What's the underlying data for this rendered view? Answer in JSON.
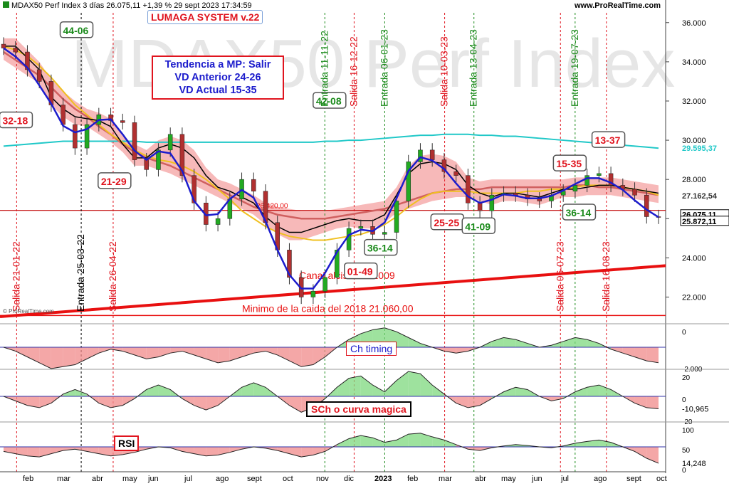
{
  "header": {
    "title": "MDAX50 Perf Index 3 días 26.075,11 +1,39 % 29 sept 2023 17:34:59",
    "site": "www.ProRealTime.com",
    "watermark": "MDAX50 Perf Index",
    "copyright": "© ProRealTime.com"
  },
  "system_box": "LUMAGA SYSTEM v.22",
  "trend_box": {
    "line1": "Tendencia a MP: Salir",
    "line2": "VD Anterior 24-26",
    "line3": "VD Actual 15-35"
  },
  "colors": {
    "red": "#e0141e",
    "green": "#1a8a1a",
    "blue": "#1c1ccc",
    "cyan": "#20c8c8",
    "yellow": "#f0c020",
    "cloud_red": "#f08080",
    "cloud_blue": "#9ee8f5"
  },
  "chart_data": {
    "type": "line",
    "main": {
      "ylim": [
        21000,
        36500
      ],
      "yticks": [
        "22.000",
        "24.000",
        "26.000",
        "28.000",
        "30.000",
        "32.000",
        "34.000",
        "36.000"
      ],
      "price_labels": [
        {
          "text": "29.595,37",
          "value": 29595,
          "color": "#20c8c8"
        },
        {
          "text": "27.162,54",
          "value": 27162,
          "color": "#333333"
        },
        {
          "text": "26.075,11",
          "value": 26200,
          "color": "#000000"
        },
        {
          "text": "25.872,11",
          "value": 25872,
          "color": "#000000"
        }
      ],
      "hline_label": "26.420,00",
      "hline_value": 26420,
      "min_line_value": 21060,
      "min_label": "Minimo de la caida del 2018  21.060,00",
      "channel_label": "Canal alcista de 2009",
      "trendline": {
        "x": [
          0,
          100
        ],
        "y": [
          21000,
          23600
        ]
      },
      "close": [
        34700,
        34500,
        33600,
        33000,
        31800,
        30800,
        29600,
        30800,
        31300,
        31000,
        30900,
        29000,
        28500,
        29500,
        30300,
        28200,
        26800,
        25700,
        26000,
        27000,
        28000,
        27400,
        25800,
        24400,
        23000,
        22000,
        22300,
        23000,
        24400,
        25500,
        25600,
        25200,
        25300,
        26900,
        28900,
        29500,
        29000,
        28400,
        28200,
        26800,
        26400,
        27200,
        27300,
        27200,
        27000,
        26900,
        27200,
        27400,
        27700,
        28200,
        28300,
        27700,
        27500,
        27200,
        26100,
        26075
      ],
      "kijun": [
        34800,
        34800,
        34200,
        33600,
        32200,
        31600,
        31200,
        31100,
        31000,
        30700,
        29800,
        29100,
        29100,
        29600,
        29800,
        29600,
        29100,
        28200,
        27600,
        27400,
        27100,
        26800,
        26100,
        25600,
        25300,
        25300,
        25500,
        25700,
        25900,
        26000,
        25900,
        25900,
        26200,
        27200,
        28300,
        28800,
        28900,
        28800,
        28500,
        27700,
        27300,
        27100,
        27300,
        27300,
        27200,
        27100,
        27300,
        27500,
        27500,
        27600,
        27700,
        27700,
        27600,
        27500,
        27400,
        27300
      ],
      "ma_slow": [
        34500,
        34100,
        33700,
        33300,
        32700,
        32100,
        31600,
        31200,
        30700,
        30300,
        29800,
        29400,
        29100,
        28900,
        28700,
        28400,
        28100,
        27800,
        27500,
        27200,
        26900,
        26600,
        26400,
        26200,
        26100,
        26000,
        26000,
        26000,
        26100,
        26200,
        26300,
        26400,
        26500,
        26700,
        26900,
        27100,
        27300,
        27400,
        27500,
        27500,
        27500,
        27600,
        27600,
        27600,
        27600,
        27600,
        27600,
        27600,
        27700,
        27700,
        27600,
        27600,
        27500,
        27400,
        27300,
        27200
      ],
      "ma_yellow": [
        34800,
        34600,
        34300,
        33800,
        33200,
        32500,
        31800,
        31300,
        30800,
        30300,
        29900,
        29500,
        29200,
        29000,
        28900,
        28700,
        28400,
        28000,
        27500,
        27000,
        26400,
        26000,
        25600,
        25300,
        25100,
        25000,
        24900,
        24900,
        25000,
        25100,
        25200,
        25400,
        25700,
        26100,
        26600,
        27000,
        27300,
        27400,
        27400,
        27400,
        27300,
        27300,
        27300,
        27300,
        27400,
        27400,
        27500,
        27500,
        27600,
        27700,
        27700,
        27700,
        27600,
        27500,
        27400,
        27200
      ],
      "ma_cyan": [
        29700,
        29750,
        29800,
        29850,
        29900,
        29950,
        29950,
        29950,
        29950,
        29950,
        29950,
        29950,
        29900,
        29900,
        29900,
        29900,
        29900,
        29900,
        29900,
        29900,
        29900,
        29900,
        29900,
        29900,
        29900,
        29900,
        29900,
        29950,
        29950,
        30000,
        30000,
        30050,
        30100,
        30150,
        30200,
        30250,
        30250,
        30300,
        30300,
        30300,
        30250,
        30250,
        30200,
        30200,
        30150,
        30100,
        30050,
        30000,
        29950,
        29900,
        29850,
        29800,
        29750,
        29700,
        29650,
        29595
      ]
    },
    "annotations": [
      {
        "text": "44-06",
        "color": "green",
        "x": 11.5,
        "y": 35600
      },
      {
        "text": "32-18",
        "color": "red",
        "x": 2.4,
        "y": 31000
      },
      {
        "text": "21-29",
        "color": "red",
        "x": 17.2,
        "y": 27900
      },
      {
        "text": "42-08",
        "color": "green",
        "x": 49.5,
        "y": 32000
      },
      {
        "text": "01-49",
        "color": "red",
        "x": 54.2,
        "y": 23300
      },
      {
        "text": "36-14",
        "color": "green",
        "x": 57.2,
        "y": 24500
      },
      {
        "text": "25-25",
        "color": "red",
        "x": 67.2,
        "y": 25800
      },
      {
        "text": "41-09",
        "color": "green",
        "x": 71.9,
        "y": 25600
      },
      {
        "text": "15-35",
        "color": "red",
        "x": 85.6,
        "y": 28800
      },
      {
        "text": "13-37",
        "color": "red",
        "x": 91.4,
        "y": 30000
      },
      {
        "text": "36-14",
        "color": "green",
        "x": 87.0,
        "y": 26300
      }
    ],
    "signals": [
      {
        "text": "Salida 21-01-22",
        "x": 2.5,
        "color": "red"
      },
      {
        "text": "Entrada 25-03-22",
        "x": 12.2,
        "color": "black"
      },
      {
        "text": "Salida 26-04-22",
        "x": 17.0,
        "color": "red"
      },
      {
        "text": "Entrada 11-11-22",
        "x": 48.8,
        "color": "green"
      },
      {
        "text": "Salida 16-12-22",
        "x": 53.2,
        "color": "red"
      },
      {
        "text": "Entrada 06-01-23",
        "x": 57.8,
        "color": "green"
      },
      {
        "text": "Salida 10-03-23",
        "x": 66.8,
        "color": "red"
      },
      {
        "text": "Entrada 13-04-23",
        "x": 71.2,
        "color": "green"
      },
      {
        "text": "Salida 06-07-23",
        "x": 84.2,
        "color": "red"
      },
      {
        "text": "Entrada 19-07-23",
        "x": 86.4,
        "color": "green"
      },
      {
        "text": "Salida 16-08-23",
        "x": 91.1,
        "color": "red"
      }
    ],
    "xticks": [
      "feb",
      "mar",
      "abr",
      "may",
      "jun",
      "jul",
      "ago",
      "sept",
      "oct",
      "nov",
      "dic",
      "2023",
      "feb",
      "mar",
      "abr",
      "may",
      "jun",
      "jul",
      "ago",
      "sept",
      "oct"
    ],
    "panels": [
      {
        "name": "Ch timing",
        "yticks": [
          "0",
          "-2.000"
        ],
        "values": [
          0,
          -200,
          -500,
          -800,
          -1100,
          -1000,
          -900,
          -600,
          -300,
          -100,
          -200,
          -400,
          -600,
          -500,
          -300,
          -200,
          -400,
          -600,
          -800,
          -700,
          -500,
          -300,
          -200,
          -400,
          -700,
          -1000,
          -900,
          -500,
          0,
          400,
          700,
          900,
          1000,
          800,
          500,
          200,
          0,
          -200,
          -300,
          -200,
          0,
          300,
          500,
          400,
          200,
          0,
          100,
          300,
          500,
          400,
          200,
          -100,
          -300,
          -500,
          -700,
          -800
        ]
      },
      {
        "name": "SCh o curva magica",
        "yticks": [
          "20",
          "0",
          "-20"
        ],
        "last_value": "-10,965",
        "values": [
          0,
          -4,
          -8,
          -10,
          -6,
          2,
          6,
          2,
          -6,
          -10,
          -8,
          -2,
          6,
          10,
          6,
          -2,
          -8,
          -12,
          -8,
          0,
          8,
          12,
          8,
          0,
          -8,
          -14,
          -10,
          -2,
          8,
          16,
          18,
          10,
          4,
          14,
          22,
          20,
          10,
          2,
          -6,
          -10,
          -8,
          -2,
          4,
          8,
          6,
          0,
          -4,
          -2,
          4,
          8,
          10,
          6,
          0,
          -6,
          -10,
          -11
        ]
      },
      {
        "name": "RSI",
        "yticks": [
          "100",
          "50",
          "0"
        ],
        "last_value": "14,248",
        "values": [
          40,
          35,
          30,
          28,
          35,
          42,
          45,
          40,
          35,
          30,
          33,
          38,
          45,
          50,
          48,
          40,
          35,
          30,
          32,
          38,
          45,
          50,
          47,
          42,
          35,
          28,
          32,
          40,
          55,
          68,
          75,
          70,
          60,
          65,
          78,
          80,
          72,
          65,
          55,
          45,
          42,
          48,
          52,
          55,
          53,
          50,
          48,
          52,
          58,
          62,
          65,
          60,
          50,
          40,
          25,
          14
        ]
      }
    ]
  }
}
